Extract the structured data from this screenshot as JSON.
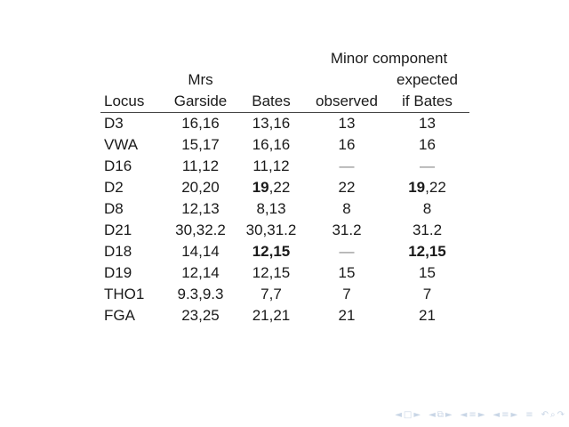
{
  "colors": {
    "background": "#ffffff",
    "text": "#1a1a1a",
    "rule": "#444444",
    "dash": "#888888",
    "nav_symbols": "#c9d6e6"
  },
  "table": {
    "header": {
      "minor_component": "Minor component",
      "mrs": "Mrs",
      "expected": "expected",
      "locus": "Locus",
      "garside": "Garside",
      "bates": "Bates",
      "observed": "observed",
      "if_bates": "if Bates"
    },
    "rows": [
      {
        "locus": "D3",
        "cells": [
          [
            {
              "t": "16,16"
            }
          ],
          [
            {
              "t": "13,16"
            }
          ],
          [
            {
              "t": "13"
            }
          ],
          [
            {
              "t": "13"
            }
          ]
        ]
      },
      {
        "locus": "VWA",
        "cells": [
          [
            {
              "t": "15,17"
            }
          ],
          [
            {
              "t": "16,16"
            }
          ],
          [
            {
              "t": "16"
            }
          ],
          [
            {
              "t": "16"
            }
          ]
        ]
      },
      {
        "locus": "D16",
        "cells": [
          [
            {
              "t": "11,12"
            }
          ],
          [
            {
              "t": "11,12"
            }
          ],
          [
            {
              "t": "—",
              "dim": true
            }
          ],
          [
            {
              "t": "—",
              "dim": true
            }
          ]
        ]
      },
      {
        "locus": "D2",
        "cells": [
          [
            {
              "t": "20,20"
            }
          ],
          [
            {
              "t": "19",
              "b": true
            },
            {
              "t": ",22"
            }
          ],
          [
            {
              "t": "22"
            }
          ],
          [
            {
              "t": "19",
              "b": true
            },
            {
              "t": ",22"
            }
          ]
        ]
      },
      {
        "locus": "D8",
        "cells": [
          [
            {
              "t": "12,13"
            }
          ],
          [
            {
              "t": "8,13"
            }
          ],
          [
            {
              "t": "8"
            }
          ],
          [
            {
              "t": "8"
            }
          ]
        ]
      },
      {
        "locus": "D21",
        "cells": [
          [
            {
              "t": "30,32.2"
            }
          ],
          [
            {
              "t": "30,31.2"
            }
          ],
          [
            {
              "t": "31.2"
            }
          ],
          [
            {
              "t": "31.2"
            }
          ]
        ]
      },
      {
        "locus": "D18",
        "cells": [
          [
            {
              "t": "14,14"
            }
          ],
          [
            {
              "t": "12,15",
              "b": true
            }
          ],
          [
            {
              "t": "—",
              "dim": true
            }
          ],
          [
            {
              "t": "12,15",
              "b": true
            }
          ]
        ]
      },
      {
        "locus": "D19",
        "cells": [
          [
            {
              "t": "12,14"
            }
          ],
          [
            {
              "t": "12,15"
            }
          ],
          [
            {
              "t": "15"
            }
          ],
          [
            {
              "t": "15"
            }
          ]
        ]
      },
      {
        "locus": "THO1",
        "cells": [
          [
            {
              "t": "9.3,9.3"
            }
          ],
          [
            {
              "t": "7,7"
            }
          ],
          [
            {
              "t": "7"
            }
          ],
          [
            {
              "t": "7"
            }
          ]
        ]
      },
      {
        "locus": "FGA",
        "cells": [
          [
            {
              "t": "23,25"
            }
          ],
          [
            {
              "t": "21,21"
            }
          ],
          [
            {
              "t": "21"
            }
          ],
          [
            {
              "t": "21"
            }
          ]
        ]
      }
    ]
  },
  "navigation": {
    "groups": [
      {
        "name": "frame-back-forward-nav",
        "symbols": [
          "◄",
          "□",
          "►"
        ]
      },
      {
        "name": "slide-overlay-nav",
        "symbols": [
          "◄",
          "⧉",
          "►"
        ]
      },
      {
        "name": "subsection-nav",
        "symbols": [
          "◄",
          "≡",
          "►"
        ]
      },
      {
        "name": "section-nav",
        "symbols": [
          "◄",
          "≡",
          "►"
        ]
      },
      {
        "name": "presentation-end-nav",
        "symbols": [
          "≡"
        ]
      },
      {
        "name": "history-search-nav",
        "symbols": [
          "↶",
          "⌕",
          "↷"
        ]
      }
    ]
  }
}
